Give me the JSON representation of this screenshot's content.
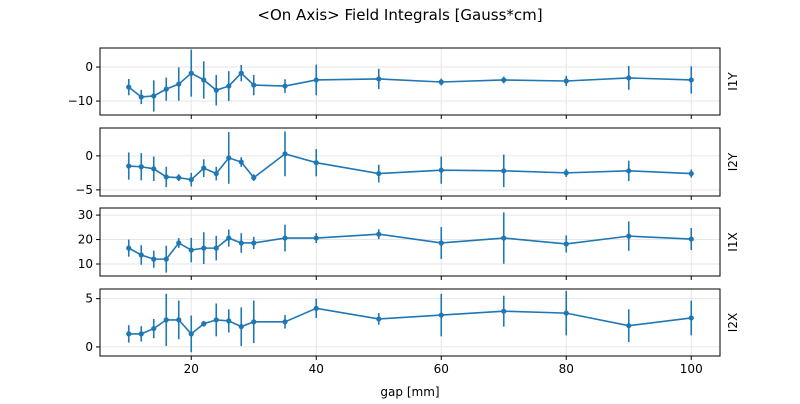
{
  "chart_data": {
    "type": "line",
    "title": "<On Axis> Field Integrals [Gauss*cm]",
    "xlabel": "gap [mm]",
    "xlim": [
      5.4,
      104.6
    ],
    "xticks": [
      20,
      40,
      60,
      80,
      100
    ],
    "grid": true,
    "color": "#1f77b4",
    "x": [
      10,
      12,
      14,
      16,
      18,
      20,
      22,
      24,
      26,
      28,
      30,
      35,
      40,
      50,
      60,
      70,
      80,
      90,
      100
    ],
    "panels": [
      {
        "ylabel": "I1Y",
        "ylim": [
          -14.1,
          5.6
        ],
        "yticks": [
          -10,
          0
        ],
        "values": [
          -5.9,
          -8.8,
          -8.5,
          -6.5,
          -5,
          -1.8,
          -3.8,
          -6.8,
          -5.6,
          -1.8,
          -5.3,
          -5.6,
          -3.8,
          -3.5,
          -4.4,
          -3.8,
          -4.1,
          -3.2,
          -3.8
        ],
        "errors": [
          2.4,
          2.1,
          4.6,
          3.4,
          4.9,
          6.9,
          5.5,
          4.5,
          4.4,
          2.4,
          3,
          2,
          4.5,
          3,
          1,
          1,
          1.5,
          3.5,
          4
        ]
      },
      {
        "ylabel": "I2Y",
        "ylim": [
          -5.9,
          4.1
        ],
        "yticks": [
          -5,
          0
        ],
        "values": [
          -1.5,
          -1.6,
          -1.9,
          -3.1,
          -3.2,
          -3.5,
          -1.8,
          -2.6,
          -0.3,
          -0.9,
          -3.2,
          0.3,
          -1.0,
          -2.6,
          -2.1,
          -2.2,
          -2.5,
          -2.2,
          -2.6
        ],
        "errors": [
          2,
          2,
          1.8,
          1.5,
          0.5,
          1,
          1.3,
          1,
          3.8,
          0.7,
          0.5,
          3.3,
          2,
          1.3,
          2,
          2.4,
          0.6,
          1.5,
          0.6
        ]
      },
      {
        "ylabel": "I1X",
        "ylim": [
          5.1,
          32.9
        ],
        "yticks": [
          10,
          20,
          30
        ],
        "values": [
          16.5,
          13.7,
          12,
          12,
          18.6,
          15.7,
          16.5,
          16.5,
          20.6,
          18.6,
          18.6,
          20.6,
          20.6,
          22.2,
          18.6,
          20.6,
          18.2,
          21.4,
          20.2
        ],
        "errors": [
          3.5,
          4,
          3.5,
          5.5,
          2,
          5,
          6.5,
          5,
          3.5,
          4,
          2.5,
          5.5,
          2,
          2,
          6.5,
          10.5,
          3.5,
          6,
          4.5
        ]
      },
      {
        "ylabel": "I2X",
        "ylim": [
          -0.94,
          6.0
        ],
        "yticks": [
          0,
          5
        ],
        "values": [
          1.35,
          1.35,
          1.9,
          2.8,
          2.8,
          1.35,
          2.4,
          2.8,
          2.7,
          2.1,
          2.6,
          2.6,
          4.0,
          2.9,
          3.3,
          3.7,
          3.5,
          2.2,
          3.0
        ],
        "errors": [
          0.9,
          0.8,
          1,
          2.7,
          2,
          1.9,
          0.3,
          1.7,
          1.2,
          2,
          2.2,
          0.7,
          1,
          0.6,
          2.2,
          1.6,
          2.3,
          1.7,
          1.8
        ]
      }
    ]
  }
}
